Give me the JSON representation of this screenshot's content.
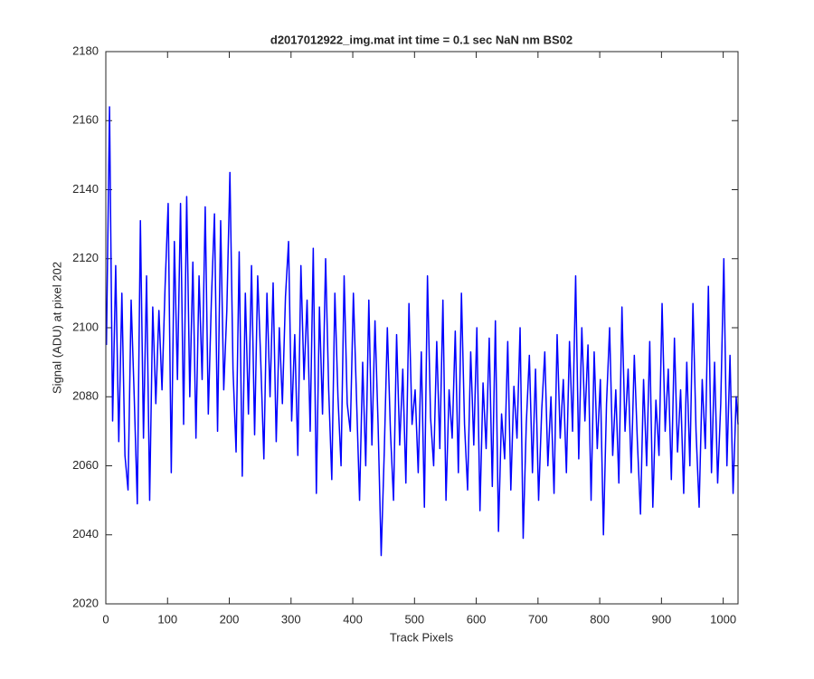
{
  "chart_data": {
    "type": "line",
    "title": "d2017012922_img.mat int time = 0.1 sec  NaN nm BS02",
    "x_label": "Track Pixels",
    "y_label": "Signal (ADU) at pixel 202",
    "xlim": [
      0,
      1024
    ],
    "ylim": [
      2020,
      2180
    ],
    "xticks": [
      0,
      100,
      200,
      300,
      400,
      500,
      600,
      700,
      800,
      900,
      1000
    ],
    "yticks": [
      2020,
      2040,
      2060,
      2080,
      2100,
      2120,
      2140,
      2160,
      2180
    ],
    "grid": false,
    "series": [
      {
        "color": "#0000ff",
        "x": [
          1,
          6,
          11,
          16,
          21,
          26,
          31,
          36,
          41,
          46,
          51,
          56,
          61,
          66,
          71,
          76,
          81,
          86,
          91,
          96,
          101,
          106,
          111,
          116,
          121,
          126,
          131,
          136,
          141,
          146,
          151,
          156,
          161,
          166,
          171,
          176,
          181,
          186,
          191,
          196,
          201,
          206,
          211,
          216,
          221,
          226,
          231,
          236,
          241,
          246,
          251,
          256,
          261,
          266,
          271,
          276,
          281,
          286,
          291,
          296,
          301,
          306,
          311,
          316,
          321,
          326,
          331,
          336,
          341,
          346,
          351,
          356,
          361,
          366,
          371,
          376,
          381,
          386,
          391,
          396,
          401,
          406,
          411,
          416,
          421,
          426,
          431,
          436,
          441,
          446,
          451,
          456,
          461,
          466,
          471,
          476,
          481,
          486,
          491,
          496,
          501,
          506,
          511,
          516,
          521,
          526,
          531,
          536,
          541,
          546,
          551,
          556,
          561,
          566,
          571,
          576,
          581,
          586,
          591,
          596,
          601,
          606,
          611,
          616,
          621,
          626,
          631,
          636,
          641,
          646,
          651,
          656,
          661,
          666,
          671,
          676,
          681,
          686,
          691,
          696,
          701,
          706,
          711,
          716,
          721,
          726,
          731,
          736,
          741,
          746,
          751,
          756,
          761,
          766,
          771,
          776,
          781,
          786,
          791,
          796,
          801,
          806,
          811,
          816,
          821,
          826,
          831,
          836,
          841,
          846,
          851,
          856,
          861,
          866,
          871,
          876,
          881,
          886,
          891,
          896,
          901,
          906,
          911,
          916,
          921,
          926,
          931,
          936,
          941,
          946,
          951,
          956,
          961,
          966,
          971,
          976,
          981,
          986,
          991,
          996,
          1001,
          1006,
          1011,
          1016,
          1021,
          1024
        ],
        "values": [
          2095,
          2164,
          2073,
          2118,
          2067,
          2110,
          2063,
          2053,
          2108,
          2080,
          2049,
          2131,
          2068,
          2115,
          2050,
          2106,
          2078,
          2105,
          2082,
          2112,
          2136,
          2058,
          2125,
          2085,
          2136,
          2072,
          2138,
          2080,
          2119,
          2068,
          2115,
          2085,
          2135,
          2075,
          2108,
          2133,
          2070,
          2131,
          2082,
          2105,
          2145,
          2088,
          2064,
          2122,
          2057,
          2110,
          2075,
          2118,
          2069,
          2115,
          2090,
          2062,
          2110,
          2080,
          2113,
          2067,
          2100,
          2078,
          2109,
          2125,
          2073,
          2098,
          2063,
          2118,
          2085,
          2108,
          2070,
          2123,
          2052,
          2106,
          2075,
          2120,
          2082,
          2056,
          2110,
          2080,
          2060,
          2115,
          2078,
          2070,
          2110,
          2080,
          2050,
          2090,
          2060,
          2108,
          2066,
          2102,
          2072,
          2034,
          2064,
          2100,
          2070,
          2050,
          2098,
          2066,
          2088,
          2055,
          2107,
          2072,
          2082,
          2058,
          2093,
          2048,
          2115,
          2074,
          2060,
          2096,
          2065,
          2108,
          2050,
          2082,
          2068,
          2099,
          2058,
          2110,
          2072,
          2053,
          2093,
          2066,
          2100,
          2047,
          2084,
          2065,
          2097,
          2054,
          2102,
          2041,
          2075,
          2062,
          2096,
          2053,
          2083,
          2068,
          2100,
          2039,
          2072,
          2092,
          2058,
          2088,
          2050,
          2076,
          2093,
          2060,
          2080,
          2052,
          2098,
          2068,
          2085,
          2058,
          2096,
          2070,
          2115,
          2062,
          2100,
          2073,
          2095,
          2050,
          2093,
          2065,
          2085,
          2040,
          2078,
          2100,
          2063,
          2082,
          2055,
          2106,
          2070,
          2088,
          2058,
          2092,
          2067,
          2046,
          2085,
          2060,
          2096,
          2048,
          2079,
          2063,
          2107,
          2070,
          2088,
          2056,
          2097,
          2064,
          2082,
          2052,
          2090,
          2060,
          2107,
          2070,
          2048,
          2085,
          2065,
          2112,
          2058,
          2090,
          2055,
          2078,
          2120,
          2060,
          2092,
          2052,
          2080,
          2072
        ]
      }
    ]
  }
}
